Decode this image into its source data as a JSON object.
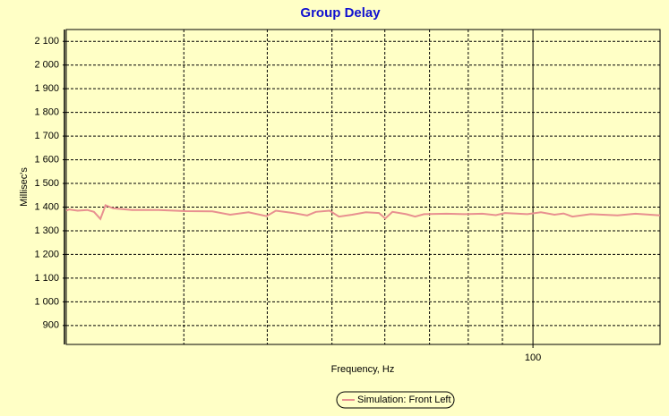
{
  "chart_data": {
    "type": "line",
    "title": "Group Delay",
    "x_label": "Frequency, Hz",
    "y_label": "Millisec's",
    "x_scale": "log",
    "xlim": [
      20,
      155
    ],
    "xticks": [
      100
    ],
    "xgrid": [
      30,
      40,
      50,
      60,
      70,
      80,
      90
    ],
    "ylim": [
      820,
      2150
    ],
    "yticks": [
      {
        "value": 900,
        "label": "900"
      },
      {
        "value": 1000,
        "label": "1 000"
      },
      {
        "value": 1100,
        "label": "1 100"
      },
      {
        "value": 1200,
        "label": "1 200"
      },
      {
        "value": 1300,
        "label": "1 300"
      },
      {
        "value": 1400,
        "label": "1 400"
      },
      {
        "value": 1500,
        "label": "1 500"
      },
      {
        "value": 1600,
        "label": "1 600"
      },
      {
        "value": 1700,
        "label": "1 700"
      },
      {
        "value": 1800,
        "label": "1 800"
      },
      {
        "value": 1900,
        "label": "1 900"
      },
      {
        "value": 2000,
        "label": "2 000"
      },
      {
        "value": 2100,
        "label": "2 100"
      }
    ],
    "grid": true,
    "legend": "bottom",
    "x": [
      20,
      20.2,
      20.8,
      21.5,
      22.0,
      22.5,
      22.9,
      23.5,
      25.1,
      27.5,
      30.2,
      33.1,
      35.2,
      37.5,
      39.9,
      41.2,
      43.8,
      45.9,
      47.3,
      49.6,
      51.2,
      53.6,
      56.2,
      58.8,
      60.1,
      61.6,
      64.6,
      66.6,
      68.7,
      74.2,
      79.0,
      84.0,
      88.0,
      90.8,
      98.1,
      102.8,
      107.7,
      111.1,
      114.6,
      122.0,
      133.9,
      142.4,
      155
    ],
    "series": [
      {
        "name": "Simulation: Front Left",
        "color": "#e89090",
        "values": [
          1385,
          1390,
          1385,
          1388,
          1380,
          1350,
          1408,
          1395,
          1388,
          1388,
          1383,
          1382,
          1368,
          1378,
          1362,
          1385,
          1375,
          1365,
          1380,
          1385,
          1360,
          1368,
          1378,
          1375,
          1352,
          1380,
          1370,
          1360,
          1370,
          1372,
          1370,
          1372,
          1366,
          1375,
          1370,
          1378,
          1368,
          1373,
          1360,
          1370,
          1365,
          1372,
          1365
        ]
      }
    ]
  }
}
